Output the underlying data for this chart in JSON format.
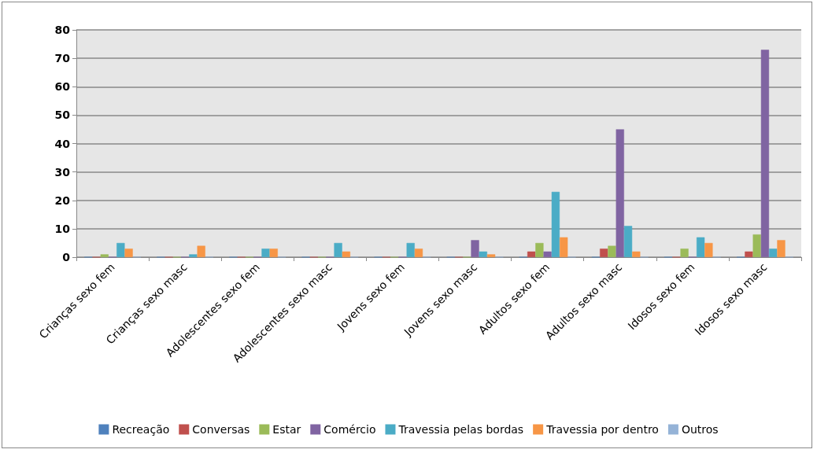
{
  "chart_data": {
    "type": "bar",
    "categories": [
      "Crianças sexo fem",
      "Crianças sexo masc",
      "Adolescentes sexo fem",
      "Adolescentes sexo masc",
      "Jovens sexo fem",
      "Jovens sexo masc",
      "Adultos sexo fem",
      "Adultos sexo masc",
      "Idosos sexo fem",
      "Idosos sexo masc"
    ],
    "series": [
      {
        "name": "Recreação",
        "color": "#4f81bd",
        "values": [
          0,
          0,
          0,
          0,
          0,
          0,
          0,
          0,
          0,
          0
        ]
      },
      {
        "name": "Conversas",
        "color": "#c0504d",
        "values": [
          0,
          0,
          0,
          0,
          0,
          0,
          2,
          3,
          0,
          2
        ]
      },
      {
        "name": "Estar",
        "color": "#9bbb59",
        "values": [
          1,
          0,
          0,
          0,
          0,
          0,
          5,
          4,
          3,
          8
        ]
      },
      {
        "name": "Comércio",
        "color": "#8064a2",
        "values": [
          0,
          0,
          0,
          0,
          0,
          6,
          2,
          45,
          0,
          73
        ]
      },
      {
        "name": "Travessia pelas bordas",
        "color": "#4bacc6",
        "values": [
          5,
          1,
          3,
          5,
          5,
          2,
          23,
          11,
          7,
          3
        ]
      },
      {
        "name": "Travessia por dentro",
        "color": "#f79646",
        "values": [
          3,
          4,
          3,
          2,
          3,
          1,
          7,
          2,
          5,
          6
        ]
      },
      {
        "name": "Outros",
        "color": "#95b3d7",
        "values": [
          0,
          0,
          0,
          0,
          0,
          0,
          0,
          0,
          0,
          0
        ]
      }
    ],
    "ylim": [
      0,
      80
    ],
    "yticks": [
      0,
      10,
      20,
      30,
      40,
      50,
      60,
      70,
      80
    ],
    "grid": "y",
    "legend": "bottom"
  }
}
